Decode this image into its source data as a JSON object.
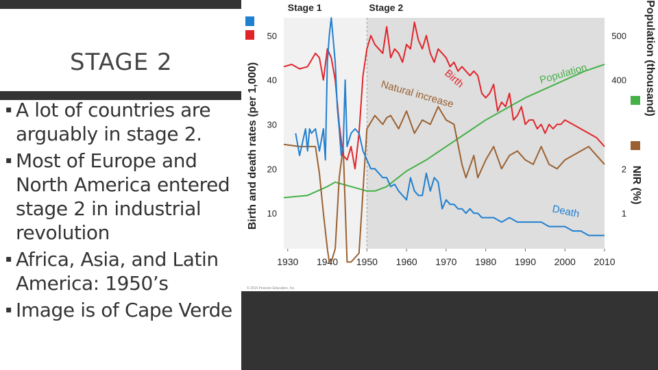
{
  "slide": {
    "title": "STAGE 2",
    "bullets": [
      "A lot of countries are arguably in stage 2.",
      "Most of Europe and North America entered stage 2 in industrial revolution",
      "Africa, Asia, and Latin America: 1950’s",
      "Image is of Cape Verde"
    ]
  },
  "chart_data": {
    "type": "line",
    "stage_labels": [
      "Stage 1",
      "Stage 2"
    ],
    "stage_boundary_year": 1950,
    "ylabel_left": "Birth and death rates (per 1,000)",
    "ylabel_right_top": "Population (thousand)",
    "ylabel_right_bottom": "NIR (%)",
    "credit": "© 2014 Pearson Education, Inc.",
    "x_ticks": [
      1930,
      1940,
      1950,
      1960,
      1970,
      1980,
      1990,
      2000,
      2010
    ],
    "x_tick_labels": [
      "1930",
      "1940",
      "1950",
      "1960",
      "1970",
      "1980",
      "1990",
      "2000",
      "2010"
    ],
    "xlim": [
      1929,
      2010
    ],
    "ylim": [
      2,
      54
    ],
    "y_left_ticks": [
      10,
      20,
      30,
      40,
      50
    ],
    "y_left_tick_labels": [
      "10",
      "20",
      "30",
      "40",
      "50"
    ],
    "y_right_pop_ticks": [
      {
        "value": 40,
        "label": "400"
      },
      {
        "value": 50,
        "label": "500"
      }
    ],
    "y_right_nir_ticks": [
      {
        "value": 10,
        "label": "1"
      },
      {
        "value": 20,
        "label": "2"
      }
    ],
    "legend_colors": {
      "death": "#1f7fd0",
      "birth": "#e0242a",
      "population": "#44b047",
      "nir": "#9a6030"
    },
    "series": [
      {
        "name": "Birth",
        "label": "Birth",
        "color": "#e0242a",
        "x": [
          1929,
          1931,
          1933,
          1935,
          1936,
          1937,
          1938,
          1939,
          1940,
          1941,
          1942,
          1943,
          1944,
          1945,
          1946,
          1947,
          1948,
          1949,
          1950,
          1951,
          1952,
          1953,
          1954,
          1955,
          1956,
          1957,
          1958,
          1959,
          1960,
          1961,
          1962,
          1963,
          1964,
          1965,
          1966,
          1967,
          1968,
          1969,
          1970,
          1971,
          1972,
          1973,
          1974,
          1975,
          1976,
          1977,
          1978,
          1979,
          1980,
          1981,
          1982,
          1983,
          1984,
          1985,
          1986,
          1987,
          1988,
          1989,
          1990,
          1991,
          1992,
          1993,
          1994,
          1995,
          1996,
          1997,
          1998,
          1999,
          2000,
          2002,
          2004,
          2006,
          2008,
          2010
        ],
        "values": [
          43,
          43.5,
          42.5,
          43,
          44.5,
          46,
          45,
          40,
          47,
          45,
          40,
          30,
          23,
          22,
          25,
          20,
          28,
          41,
          47,
          50,
          48,
          47,
          46,
          52,
          45,
          47,
          46,
          44,
          48,
          47,
          53,
          49,
          47,
          50,
          46,
          44,
          47,
          46,
          45,
          43,
          44,
          42,
          43,
          42,
          41,
          42,
          41,
          37,
          36,
          37,
          39,
          33,
          35,
          34,
          37,
          31,
          32,
          34,
          30,
          31,
          31,
          29,
          30,
          28,
          30,
          29,
          30,
          30,
          31,
          30,
          29,
          28,
          27,
          25
        ]
      },
      {
        "name": "Death",
        "label": "Death",
        "color": "#1f7fd0",
        "x": [
          1932,
          1933,
          1934,
          1934.5,
          1935,
          1935.5,
          1936,
          1937,
          1938,
          1939,
          1939.5,
          1940,
          1940.5,
          1941,
          1941.5,
          1942,
          1942.5,
          1943,
          1943.5,
          1944,
          1944.5,
          1945,
          1946,
          1947,
          1948,
          1949,
          1950,
          1951,
          1952,
          1953,
          1954,
          1955,
          1956,
          1957,
          1958,
          1959,
          1960,
          1961,
          1962,
          1963,
          1964,
          1965,
          1966,
          1967,
          1968,
          1969,
          1970,
          1971,
          1972,
          1973,
          1974,
          1975,
          1976,
          1977,
          1978,
          1979,
          1980,
          1982,
          1984,
          1986,
          1988,
          1990,
          1992,
          1994,
          1996,
          1998,
          2000,
          2002,
          2004,
          2006,
          2008,
          2010
        ],
        "values": [
          28,
          23,
          27,
          29,
          24,
          29,
          28,
          29,
          24,
          29,
          22,
          44,
          50,
          54,
          49,
          44,
          34,
          29,
          23,
          25,
          40,
          25,
          28,
          29,
          28,
          24,
          22,
          20,
          20,
          19,
          18,
          18,
          16,
          16.5,
          15,
          14,
          13,
          18,
          15,
          14,
          14,
          19,
          15,
          18,
          17,
          11,
          13,
          12,
          12,
          11,
          11,
          10,
          11,
          10,
          10,
          9,
          9,
          9,
          8,
          9,
          8,
          8,
          8,
          8,
          7,
          7,
          7,
          6,
          6,
          5,
          5,
          5
        ]
      },
      {
        "name": "Population",
        "label": "Population",
        "color": "#44b047",
        "x": [
          1929,
          1935,
          1940,
          1942,
          1946,
          1950,
          1952,
          1955,
          1960,
          1965,
          1970,
          1975,
          1980,
          1985,
          1990,
          1995,
          2000,
          2005,
          2010
        ],
        "values": [
          13.5,
          14,
          16,
          17,
          16,
          15,
          15,
          16,
          19.5,
          22,
          25,
          28,
          31,
          33.5,
          36,
          38,
          40,
          42,
          43.5
        ]
      },
      {
        "name": "Natural increase",
        "label": "Natural increase",
        "color": "#9a6030",
        "x": [
          1929,
          1933,
          1937,
          1938,
          1939,
          1940,
          1940.5,
          1941,
          1942,
          1943,
          1944,
          1945,
          1946,
          1947,
          1948,
          1949,
          1950,
          1952,
          1954,
          1955,
          1956,
          1958,
          1960,
          1962,
          1964,
          1966,
          1968,
          1970,
          1972,
          1974,
          1975,
          1977,
          1978,
          1980,
          1982,
          1984,
          1986,
          1988,
          1990,
          1992,
          1994,
          1996,
          1998,
          2000,
          2002,
          2004,
          2006,
          2008,
          2010
        ],
        "values": [
          25.5,
          25,
          25,
          19,
          10,
          2,
          -1,
          -1,
          2,
          18,
          25,
          -1,
          -1,
          0,
          1,
          15,
          29,
          32,
          30,
          31.5,
          32,
          29,
          33,
          28,
          31,
          30,
          34,
          31,
          30,
          21,
          18,
          23,
          18,
          22,
          25,
          20,
          23,
          24,
          22,
          21,
          25,
          21,
          20,
          22,
          23,
          24,
          25,
          23,
          21
        ]
      }
    ],
    "annotations": [
      {
        "text": "Birth",
        "series": "Birth"
      },
      {
        "text": "Natural increase",
        "series": "Natural increase"
      },
      {
        "text": "Population",
        "series": "Population"
      },
      {
        "text": "Death",
        "series": "Death"
      }
    ]
  }
}
